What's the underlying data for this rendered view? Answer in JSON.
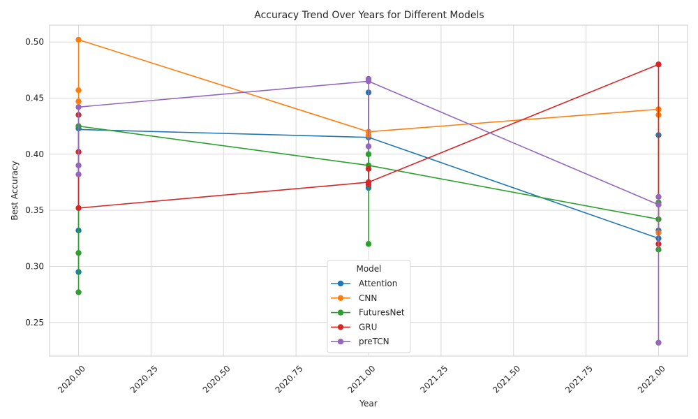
{
  "chart_data": {
    "type": "line",
    "title": "Accuracy Trend Over Years for Different Models",
    "xlabel": "Year",
    "ylabel": "Best Accuracy",
    "xlim": [
      2019.9,
      2022.1
    ],
    "ylim": [
      0.22,
      0.515
    ],
    "xticks": [
      2020.0,
      2020.25,
      2020.5,
      2020.75,
      2021.0,
      2021.25,
      2021.5,
      2021.75,
      2022.0
    ],
    "xtick_labels": [
      "2020.00",
      "2020.25",
      "2020.50",
      "2020.75",
      "2021.00",
      "2021.25",
      "2021.50",
      "2021.75",
      "2022.00"
    ],
    "yticks": [
      0.25,
      0.3,
      0.35,
      0.4,
      0.45,
      0.5
    ],
    "ytick_labels": [
      "0.25",
      "0.30",
      "0.35",
      "0.40",
      "0.45",
      "0.50"
    ],
    "grid": true,
    "legend": {
      "title": "Model",
      "placement": "bottom-center"
    },
    "series": [
      {
        "name": "Attention",
        "color": "#1f77b4",
        "points": [
          [
            2020,
            0.423
          ],
          [
            2020,
            0.423
          ],
          [
            2020,
            0.332
          ],
          [
            2020,
            0.295
          ],
          [
            2021,
            0.455
          ],
          [
            2021,
            0.415
          ],
          [
            2021,
            0.37
          ],
          [
            2022,
            0.417
          ],
          [
            2022,
            0.332
          ],
          [
            2022,
            0.325
          ]
        ],
        "mean_line": [
          [
            2020,
            0.422
          ],
          [
            2021,
            0.415
          ],
          [
            2022,
            0.325
          ]
        ]
      },
      {
        "name": "CNN",
        "color": "#ff7f0e",
        "points": [
          [
            2020,
            0.502
          ],
          [
            2020,
            0.457
          ],
          [
            2020,
            0.447
          ],
          [
            2021,
            0.42
          ],
          [
            2021,
            0.417
          ],
          [
            2022,
            0.44
          ],
          [
            2022,
            0.435
          ],
          [
            2022,
            0.33
          ]
        ],
        "mean_line": [
          [
            2020,
            0.502
          ],
          [
            2021,
            0.42
          ],
          [
            2022,
            0.44
          ]
        ]
      },
      {
        "name": "FuturesNet",
        "color": "#2ca02c",
        "points": [
          [
            2020,
            0.425
          ],
          [
            2020,
            0.312
          ],
          [
            2020,
            0.277
          ],
          [
            2021,
            0.4
          ],
          [
            2021,
            0.39
          ],
          [
            2021,
            0.32
          ],
          [
            2022,
            0.357
          ],
          [
            2022,
            0.342
          ],
          [
            2022,
            0.315
          ]
        ],
        "mean_line": [
          [
            2020,
            0.425
          ],
          [
            2021,
            0.39
          ],
          [
            2022,
            0.342
          ]
        ]
      },
      {
        "name": "GRU",
        "color": "#d62728",
        "points": [
          [
            2020,
            0.435
          ],
          [
            2020,
            0.402
          ],
          [
            2020,
            0.352
          ],
          [
            2021,
            0.387
          ],
          [
            2021,
            0.375
          ],
          [
            2021,
            0.373
          ],
          [
            2022,
            0.48
          ],
          [
            2022,
            0.32
          ]
        ],
        "mean_line": [
          [
            2020,
            0.352
          ],
          [
            2021,
            0.375
          ],
          [
            2022,
            0.48
          ]
        ]
      },
      {
        "name": "preTCN",
        "color": "#9467bd",
        "points": [
          [
            2020,
            0.442
          ],
          [
            2020,
            0.39
          ],
          [
            2020,
            0.382
          ],
          [
            2021,
            0.467
          ],
          [
            2021,
            0.465
          ],
          [
            2021,
            0.407
          ],
          [
            2022,
            0.362
          ],
          [
            2022,
            0.355
          ],
          [
            2022,
            0.232
          ]
        ],
        "mean_line": [
          [
            2020,
            0.442
          ],
          [
            2021,
            0.465
          ],
          [
            2022,
            0.355
          ]
        ]
      }
    ]
  }
}
